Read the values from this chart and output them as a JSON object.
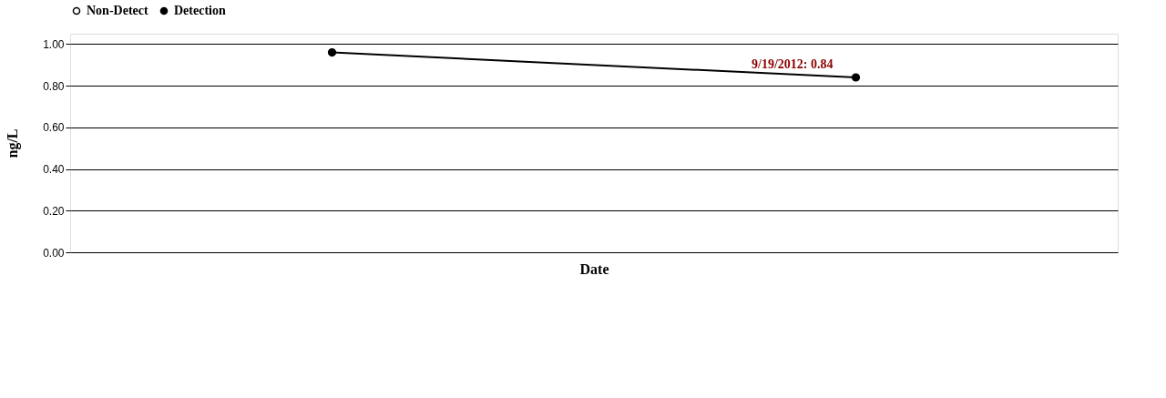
{
  "chart_data": {
    "type": "line",
    "categories": [
      null,
      null
    ],
    "series": [
      {
        "name": "Non-Detect",
        "color": "#ffffff",
        "values": [
          null,
          null
        ]
      },
      {
        "name": "Detection",
        "color": "#000000",
        "values": [
          0.96,
          0.84
        ]
      }
    ],
    "xlabel": "Date",
    "ylabel": "ng/L",
    "ylim": [
      0,
      1.05
    ],
    "yticks": [
      {
        "value": 0,
        "label": "0.00"
      },
      {
        "value": 0.2,
        "label": "0.20"
      },
      {
        "value": 0.4,
        "label": "0.40"
      },
      {
        "value": 0.6,
        "label": "0.60"
      },
      {
        "value": 0.8,
        "label": "0.80"
      },
      {
        "value": 1.0,
        "label": "1.00"
      }
    ],
    "annotations": [
      {
        "text": "9/19/2012:  0.84",
        "y": 0.84
      }
    ],
    "grid": "y",
    "legend": "top",
    "marker": "circle",
    "line_style": "solid"
  }
}
